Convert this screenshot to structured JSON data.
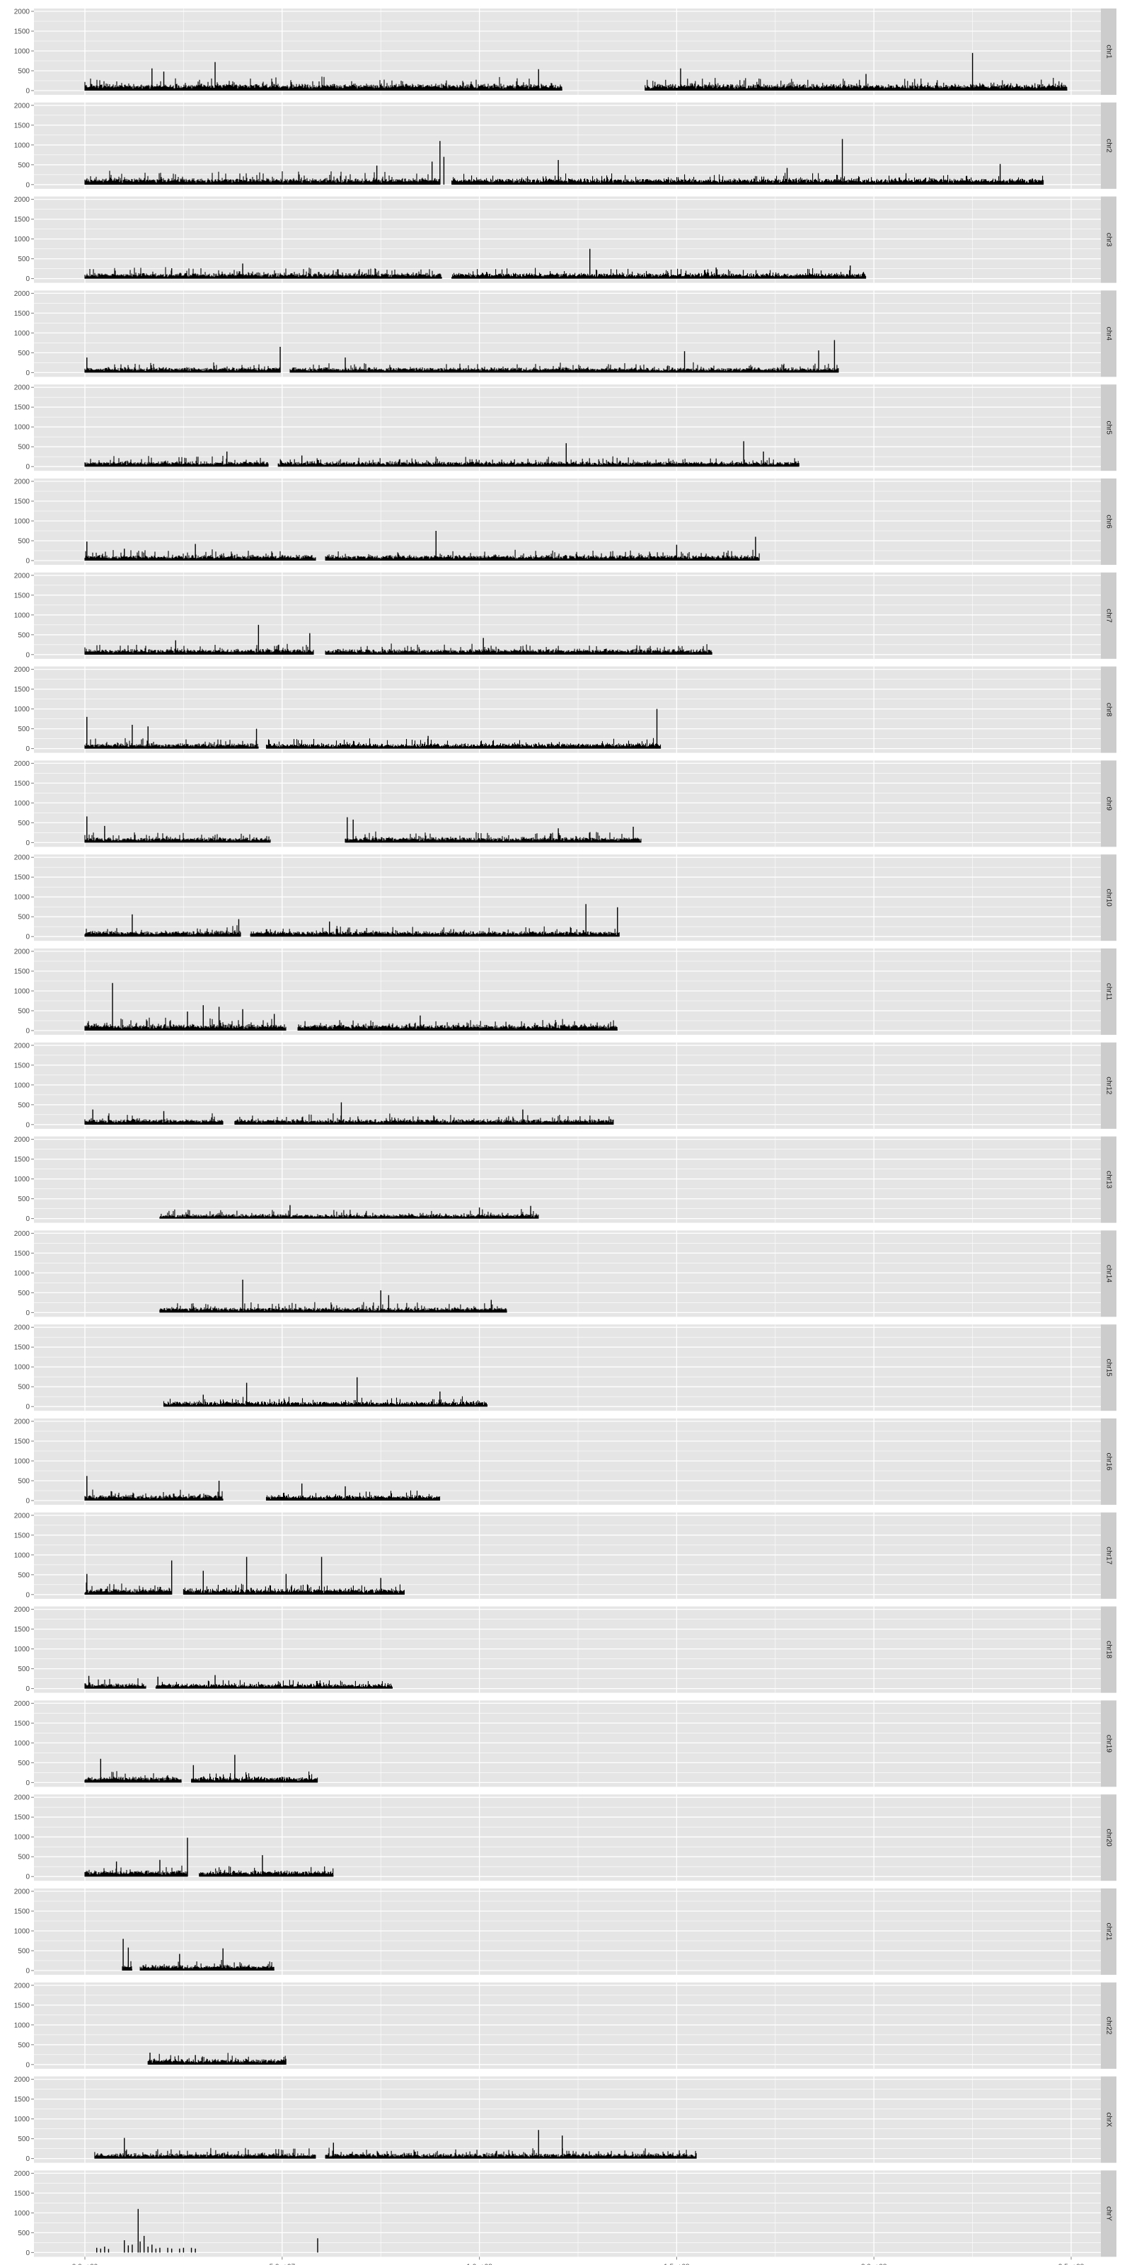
{
  "chart_data": {
    "type": "bar",
    "title": "",
    "xlabel": "",
    "ylabel": "",
    "facet_by": "chromosome",
    "facet_strip_position": "right",
    "grid": true,
    "xlim": [
      0,
      260000000
    ],
    "ylim": [
      0,
      2000
    ],
    "x_ticks": [
      0,
      50000000,
      100000000,
      150000000,
      200000000,
      250000000
    ],
    "x_tick_labels": [
      "0.0e+00",
      "5.0e+07",
      "1.0e+08",
      "1.5e+08",
      "2.0e+08",
      "2.5e+08"
    ],
    "y_ticks": [
      0,
      500,
      1000,
      1500,
      2000
    ],
    "y_tick_labels": [
      "0",
      "500",
      "1000",
      "1500",
      "2000"
    ],
    "colors": {
      "panel": "#e5e5e5",
      "grid": "#ffffff",
      "strip": "#cccccc",
      "bars": "#000000",
      "text": "#4d4d4d"
    },
    "panels": [
      {
        "label": "chr1",
        "base": 90,
        "segments": [
          [
            0,
            121,
            110
          ],
          [
            142,
            249,
            100
          ]
        ],
        "peaks": [
          [
            33,
            720
          ],
          [
            17,
            560
          ],
          [
            20,
            480
          ],
          [
            225,
            950
          ],
          [
            115,
            540
          ],
          [
            151,
            560
          ],
          [
            198,
            420
          ]
        ]
      },
      {
        "label": "chr2",
        "base": 85,
        "segments": [
          [
            0,
            90,
            110
          ],
          [
            93,
            243,
            95
          ]
        ],
        "peaks": [
          [
            90,
            1100
          ],
          [
            91,
            700
          ],
          [
            88,
            580
          ],
          [
            192,
            1150
          ],
          [
            178,
            420
          ],
          [
            120,
            620
          ],
          [
            232,
            520
          ],
          [
            74,
            480
          ]
        ]
      },
      {
        "label": "chr3",
        "base": 75,
        "segments": [
          [
            0,
            90.5,
            95
          ],
          [
            93,
            198,
            85
          ]
        ],
        "peaks": [
          [
            128,
            750
          ],
          [
            40,
            380
          ],
          [
            194,
            330
          ],
          [
            160,
            280
          ],
          [
            22,
            260
          ]
        ]
      },
      {
        "label": "chr4",
        "base": 70,
        "segments": [
          [
            0,
            49.5,
            90
          ],
          [
            52,
            191,
            80
          ]
        ],
        "peaks": [
          [
            49.5,
            650
          ],
          [
            190,
            820
          ],
          [
            152,
            540
          ],
          [
            186,
            560
          ],
          [
            0.5,
            380
          ],
          [
            66,
            380
          ]
        ]
      },
      {
        "label": "chr5",
        "base": 70,
        "segments": [
          [
            0,
            46.5,
            85
          ],
          [
            49,
            181,
            80
          ]
        ],
        "peaks": [
          [
            122,
            590
          ],
          [
            167,
            640
          ],
          [
            36,
            380
          ],
          [
            55,
            280
          ],
          [
            172,
            380
          ]
        ]
      },
      {
        "label": "chr6",
        "base": 75,
        "segments": [
          [
            0,
            58.5,
            90
          ],
          [
            61,
            171,
            85
          ]
        ],
        "peaks": [
          [
            89,
            750
          ],
          [
            170,
            600
          ],
          [
            28,
            420
          ],
          [
            150,
            400
          ],
          [
            0.5,
            480
          ],
          [
            10,
            300
          ]
        ]
      },
      {
        "label": "chr7",
        "base": 75,
        "segments": [
          [
            0,
            58,
            90
          ],
          [
            61,
            159,
            90
          ]
        ],
        "peaks": [
          [
            44,
            750
          ],
          [
            57,
            540
          ],
          [
            101,
            420
          ],
          [
            23,
            360
          ]
        ]
      },
      {
        "label": "chr8",
        "base": 70,
        "segments": [
          [
            0,
            44,
            90
          ],
          [
            46,
            146,
            85
          ]
        ],
        "peaks": [
          [
            145,
            1000
          ],
          [
            0.5,
            800
          ],
          [
            12,
            600
          ],
          [
            16,
            560
          ],
          [
            43.5,
            500
          ],
          [
            87,
            320
          ]
        ]
      },
      {
        "label": "chr9",
        "base": 70,
        "segments": [
          [
            0,
            47,
            80
          ],
          [
            66,
            141,
            95
          ]
        ],
        "peaks": [
          [
            0.5,
            660
          ],
          [
            66.5,
            640
          ],
          [
            68,
            580
          ],
          [
            5,
            420
          ],
          [
            120,
            360
          ],
          [
            139,
            400
          ]
        ]
      },
      {
        "label": "chr10",
        "base": 75,
        "segments": [
          [
            0,
            39.5,
            90
          ],
          [
            42,
            135.5,
            85
          ]
        ],
        "peaks": [
          [
            127,
            820
          ],
          [
            135,
            740
          ],
          [
            12,
            560
          ],
          [
            39,
            440
          ],
          [
            62,
            380
          ]
        ]
      },
      {
        "label": "chr11",
        "base": 85,
        "segments": [
          [
            0,
            51,
            105
          ],
          [
            54,
            135,
            85
          ]
        ],
        "peaks": [
          [
            7,
            1200
          ],
          [
            30,
            640
          ],
          [
            34,
            600
          ],
          [
            26,
            480
          ],
          [
            40,
            540
          ],
          [
            48,
            420
          ],
          [
            85,
            380
          ]
        ]
      },
      {
        "label": "chr12",
        "base": 75,
        "segments": [
          [
            0,
            35,
            95
          ],
          [
            38,
            134,
            85
          ]
        ],
        "peaks": [
          [
            65,
            560
          ],
          [
            111,
            380
          ],
          [
            20,
            340
          ],
          [
            2,
            380
          ]
        ]
      },
      {
        "label": "chr13",
        "base": 60,
        "segments": [
          [
            19,
            115,
            75
          ]
        ],
        "peaks": [
          [
            52,
            340
          ],
          [
            113,
            320
          ],
          [
            100,
            280
          ]
        ]
      },
      {
        "label": "chr14",
        "base": 70,
        "segments": [
          [
            19,
            107,
            85
          ]
        ],
        "peaks": [
          [
            40,
            830
          ],
          [
            75,
            560
          ],
          [
            77,
            440
          ],
          [
            103,
            320
          ]
        ]
      },
      {
        "label": "chr15",
        "base": 70,
        "segments": [
          [
            20,
            102,
            85
          ]
        ],
        "peaks": [
          [
            69,
            740
          ],
          [
            41,
            600
          ],
          [
            90,
            380
          ],
          [
            30,
            300
          ]
        ]
      },
      {
        "label": "chr16",
        "base": 75,
        "segments": [
          [
            0,
            35,
            95
          ],
          [
            46,
            90,
            85
          ]
        ],
        "peaks": [
          [
            0.5,
            620
          ],
          [
            34,
            500
          ],
          [
            55,
            430
          ],
          [
            66,
            360
          ]
        ]
      },
      {
        "label": "chr17",
        "base": 80,
        "segments": [
          [
            0,
            22,
            100
          ],
          [
            25,
            81,
            90
          ]
        ],
        "peaks": [
          [
            22,
            860
          ],
          [
            41,
            950
          ],
          [
            60,
            950
          ],
          [
            30,
            600
          ],
          [
            51,
            520
          ],
          [
            75,
            420
          ],
          [
            0.5,
            520
          ]
        ]
      },
      {
        "label": "chr18",
        "base": 65,
        "segments": [
          [
            0,
            15.5,
            85
          ],
          [
            18,
            78,
            75
          ]
        ],
        "peaks": [
          [
            33,
            340
          ],
          [
            18.5,
            300
          ],
          [
            1,
            320
          ]
        ]
      },
      {
        "label": "chr19",
        "base": 80,
        "segments": [
          [
            0,
            24.5,
            95
          ],
          [
            27,
            59,
            95
          ]
        ],
        "peaks": [
          [
            38,
            700
          ],
          [
            4,
            600
          ],
          [
            27.5,
            440
          ]
        ]
      },
      {
        "label": "chr20",
        "base": 80,
        "segments": [
          [
            0,
            26,
            95
          ],
          [
            29,
            63,
            90
          ]
        ],
        "peaks": [
          [
            26,
            980
          ],
          [
            45,
            540
          ],
          [
            19,
            420
          ],
          [
            8,
            380
          ]
        ]
      },
      {
        "label": "chr21",
        "base": 75,
        "segments": [
          [
            9.5,
            12,
            90
          ],
          [
            14,
            48,
            85
          ]
        ],
        "peaks": [
          [
            9.7,
            800
          ],
          [
            11,
            580
          ],
          [
            35,
            560
          ],
          [
            24,
            420
          ]
        ]
      },
      {
        "label": "chr22",
        "base": 80,
        "segments": [
          [
            16,
            51,
            90
          ]
        ],
        "peaks": [
          [
            16.5,
            300
          ],
          [
            28,
            240
          ]
        ]
      },
      {
        "label": "chrX",
        "base": 70,
        "segments": [
          [
            2.5,
            58.5,
            85
          ],
          [
            61,
            155,
            85
          ]
        ],
        "peaks": [
          [
            115,
            720
          ],
          [
            121,
            580
          ],
          [
            10,
            520
          ],
          [
            63,
            400
          ]
        ]
      },
      {
        "label": "chrY",
        "base": 0,
        "segments": [],
        "peaks": [
          [
            13.5,
            1100
          ],
          [
            10,
            310
          ],
          [
            14,
            280
          ],
          [
            59,
            360
          ],
          [
            3,
            120
          ],
          [
            4,
            100
          ],
          [
            5,
            150
          ],
          [
            6,
            90
          ],
          [
            11,
            180
          ],
          [
            12,
            200
          ],
          [
            15,
            420
          ],
          [
            16,
            150
          ],
          [
            17,
            200
          ],
          [
            18,
            100
          ],
          [
            19,
            120
          ],
          [
            21,
            120
          ],
          [
            22,
            100
          ],
          [
            24,
            100
          ],
          [
            25,
            120
          ],
          [
            27,
            120
          ],
          [
            28,
            100
          ]
        ]
      }
    ]
  }
}
